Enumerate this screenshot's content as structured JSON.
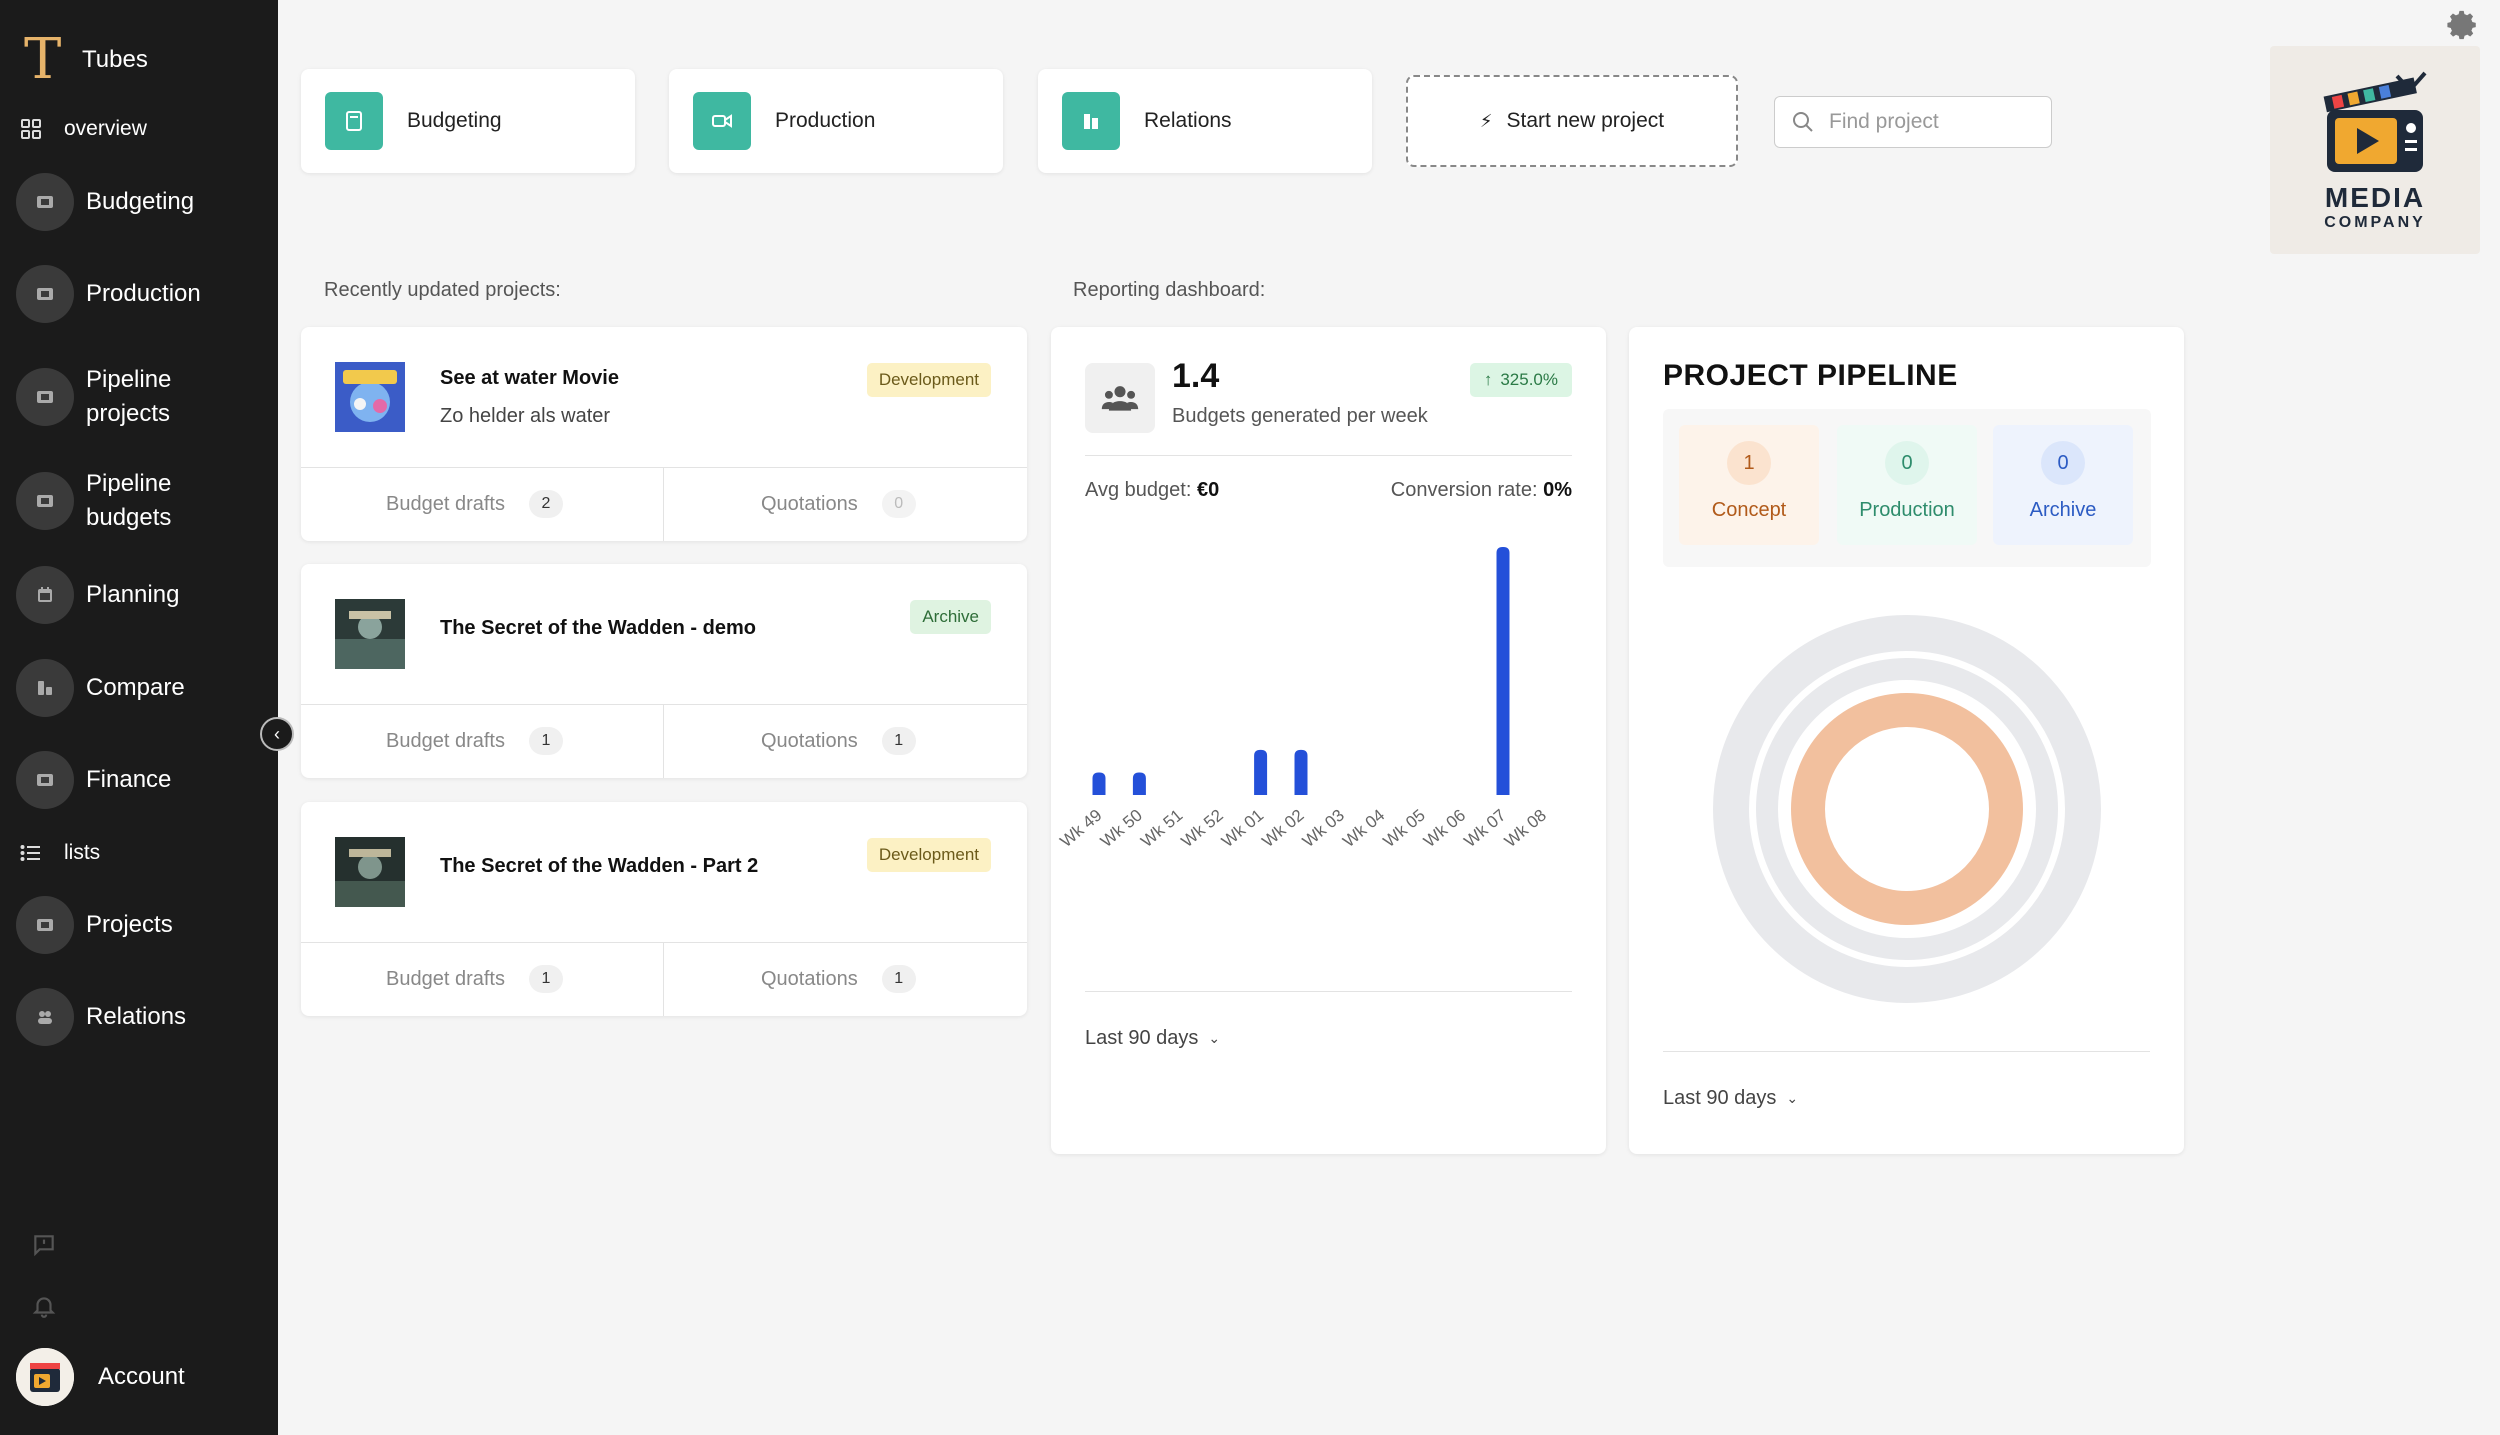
{
  "sidebar": {
    "brand": {
      "logo": "T",
      "name": "Tubes"
    },
    "overview_label": "overview",
    "lists_label": "lists",
    "nav1": [
      {
        "label": "Budgeting",
        "icon": "film-icon"
      },
      {
        "label": "Production",
        "icon": "film-icon"
      },
      {
        "label": "Pipeline projects",
        "icon": "film-icon"
      },
      {
        "label": "Pipeline budgets",
        "icon": "film-icon"
      },
      {
        "label": "Planning",
        "icon": "calendar-icon"
      },
      {
        "label": "Compare",
        "icon": "compare-icon"
      },
      {
        "label": "Finance",
        "icon": "film-icon"
      }
    ],
    "nav2": [
      {
        "label": "Projects",
        "icon": "film-icon"
      },
      {
        "label": "Relations",
        "icon": "users-icon"
      }
    ],
    "account_label": "Account"
  },
  "top": {
    "cards": [
      {
        "label": "Budgeting",
        "icon": "calculator-icon"
      },
      {
        "label": "Production",
        "icon": "video-icon"
      },
      {
        "label": "Relations",
        "icon": "building-icon"
      }
    ],
    "new_project_label": "Start new project",
    "search_placeholder": "Find project",
    "logo": {
      "line1": "MEDIA",
      "line2": "COMPANY"
    }
  },
  "recent": {
    "title": "Recently updated projects:",
    "projects": [
      {
        "title": "See at water Movie",
        "subtitle": "Zo helder als water",
        "status": "Development",
        "budget_drafts_label": "Budget drafts",
        "budget_drafts": "2",
        "quotations_label": "Quotations",
        "quotations": "0"
      },
      {
        "title": "The Secret of the Wadden - demo",
        "subtitle": "",
        "status": "Archive",
        "budget_drafts_label": "Budget drafts",
        "budget_drafts": "1",
        "quotations_label": "Quotations",
        "quotations": "1"
      },
      {
        "title": "The Secret of the Wadden - Part 2",
        "subtitle": "",
        "status": "Development",
        "budget_drafts_label": "Budget drafts",
        "budget_drafts": "1",
        "quotations_label": "Quotations",
        "quotations": "1"
      }
    ]
  },
  "report": {
    "title": "Reporting dashboard:",
    "value": "1.4",
    "value_label": "Budgets generated per week",
    "change": "325.0%",
    "avg_label": "Avg budget:",
    "avg_value": "€0",
    "conv_label": "Conversion rate:",
    "conv_value": "0%",
    "period": "Last 90 days"
  },
  "chart_data": {
    "type": "bar",
    "categories": [
      "Wk 49",
      "Wk 50",
      "Wk 51",
      "Wk 52",
      "Wk 01",
      "Wk 02",
      "Wk 03",
      "Wk 04",
      "Wk 05",
      "Wk 06",
      "Wk 07",
      "Wk 08"
    ],
    "values": [
      1,
      1,
      0,
      0,
      2,
      2,
      0,
      0,
      0,
      0,
      11,
      0
    ],
    "title": "",
    "xlabel": "",
    "ylabel": "",
    "ylim": [
      0,
      11
    ],
    "grid": false,
    "color": "#2450d9"
  },
  "pipeline": {
    "title": "PROJECT PIPELINE",
    "stages": [
      {
        "label": "Concept",
        "count": "1"
      },
      {
        "label": "Production",
        "count": "0"
      },
      {
        "label": "Archive",
        "count": "0"
      }
    ],
    "ring_colors": {
      "concept": "#f2c09e",
      "empty": "#e8e9ec"
    },
    "period": "Last 90 days"
  }
}
